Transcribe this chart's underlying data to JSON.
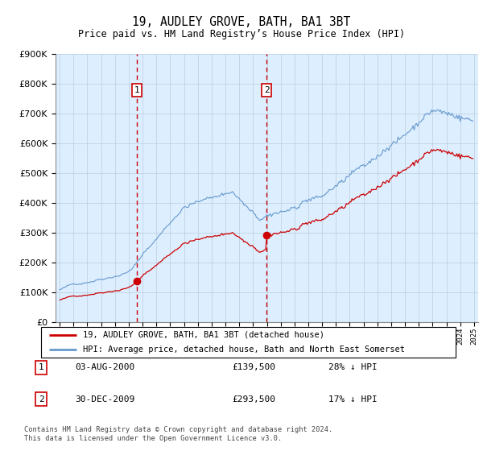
{
  "title": "19, AUDLEY GROVE, BATH, BA1 3BT",
  "subtitle": "Price paid vs. HM Land Registry’s House Price Index (HPI)",
  "legend_line1": "19, AUDLEY GROVE, BATH, BA1 3BT (detached house)",
  "legend_line2": "HPI: Average price, detached house, Bath and North East Somerset",
  "table_rows": [
    {
      "num": "1",
      "date": "03-AUG-2000",
      "price": "£139,500",
      "hpi": "28% ↓ HPI"
    },
    {
      "num": "2",
      "date": "30-DEC-2009",
      "price": "£293,500",
      "hpi": "17% ↓ HPI"
    }
  ],
  "footnote": "Contains HM Land Registry data © Crown copyright and database right 2024.\nThis data is licensed under the Open Government Licence v3.0.",
  "sale1_year": 2000.58,
  "sale1_price": 139500,
  "sale2_year": 2009.99,
  "sale2_price": 293500,
  "hpi_color": "#6699cc",
  "price_color": "#cc0000",
  "vline_color": "#cc0000",
  "shade_color": "#ddeeff",
  "background_color": "#ddeeff",
  "ylim": [
    0,
    900000
  ],
  "xlim_start": 1994.7,
  "xlim_end": 2025.3
}
